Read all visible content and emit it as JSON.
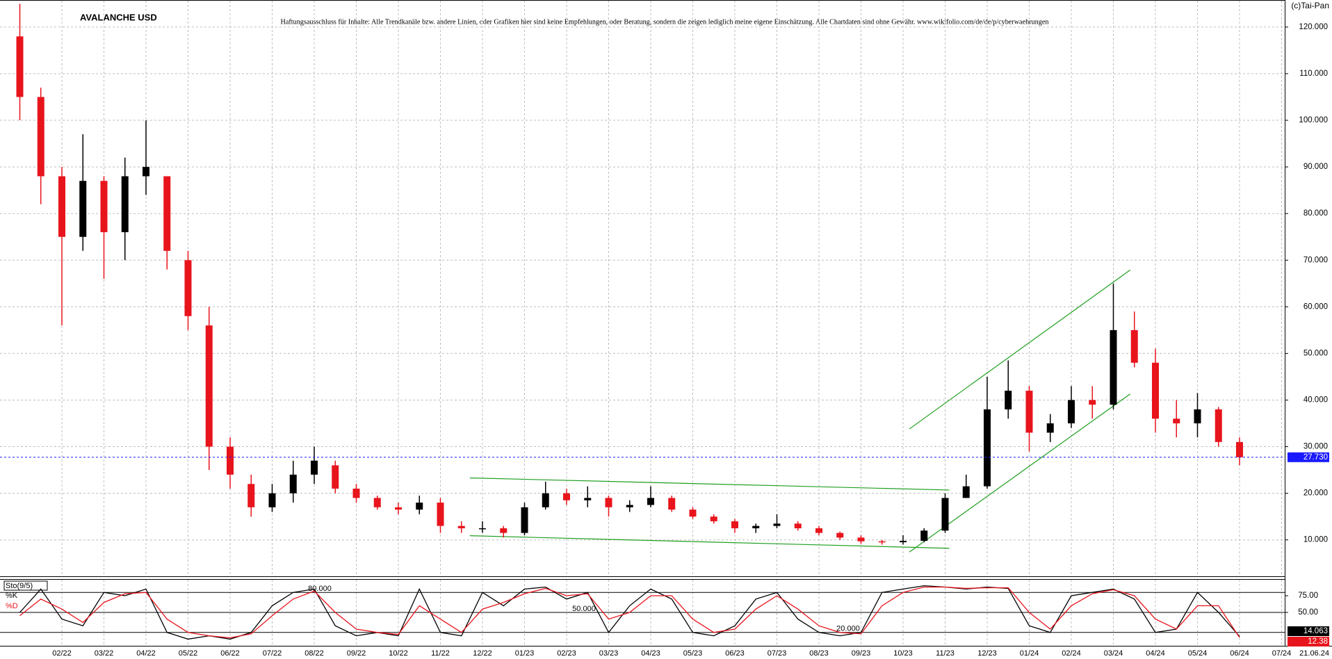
{
  "chart_data": [
    {
      "type": "candlestick",
      "title": "AVALANCHE USD",
      "subtitle": "Haftungsausschluss für Inhalte: Alle Trendkanäle bzw. andere Linien, oder Grafiken hier sind keine Empfehlungen, oder Beratung, sondern die zeigen lediglich meine eigene Einschätzung. Alle Chartdaten sind ohne Gewähr.  www.wikifolio.com/de/de/p/cyberwaehrungen",
      "copyright": "(c)Tai-Pan",
      "date_label": "21.06.24",
      "categories": [
        null,
        null,
        "02/22",
        null,
        "03/22",
        null,
        "04/22",
        null,
        "05/22",
        null,
        "06/22",
        null,
        "07/22",
        null,
        "08/22",
        null,
        "09/22",
        null,
        "10/22",
        null,
        "11/22",
        null,
        "12/22",
        null,
        "01/23",
        null,
        "02/23",
        null,
        "03/23",
        null,
        "04/23",
        null,
        "05/23",
        null,
        "06/23",
        null,
        "07/23",
        null,
        "08/23",
        null,
        "09/23",
        null,
        "10/23",
        null,
        "11/23",
        null,
        "12/23",
        null,
        "01/24",
        null,
        "02/24",
        null,
        "03/24",
        null,
        "04/24",
        null,
        "05/24",
        null,
        "06/24",
        null,
        "07/24"
      ],
      "ohlc": [
        [
          118,
          125,
          100,
          105
        ],
        [
          105,
          107,
          82,
          88
        ],
        [
          88,
          90,
          56,
          75
        ],
        [
          75,
          97,
          72,
          87
        ],
        [
          87,
          88,
          66,
          76
        ],
        [
          76,
          92,
          70,
          88
        ],
        [
          88,
          100,
          84,
          90
        ],
        [
          88,
          82,
          68,
          72
        ],
        [
          70,
          72,
          55,
          58
        ],
        [
          56,
          60,
          25,
          30
        ],
        [
          30,
          32,
          21,
          24
        ],
        [
          22,
          24,
          15,
          17
        ],
        [
          17,
          22,
          16,
          20
        ],
        [
          20,
          27,
          18,
          24
        ],
        [
          24,
          30,
          22,
          27
        ],
        [
          26,
          27,
          20,
          21
        ],
        [
          21,
          22,
          18,
          19
        ],
        [
          19,
          19.5,
          16.5,
          17
        ],
        [
          17,
          18,
          15.5,
          16.5
        ],
        [
          16.5,
          19.5,
          15.5,
          18
        ],
        [
          18,
          19,
          11.5,
          13
        ],
        [
          13,
          14,
          11.5,
          12.5
        ],
        [
          12.5,
          14,
          11.5,
          12.5
        ],
        [
          12.5,
          13,
          10.5,
          11.5
        ],
        [
          11.5,
          18,
          11,
          17
        ],
        [
          17,
          22.5,
          16.5,
          20
        ],
        [
          20,
          21,
          17.5,
          18.5
        ],
        [
          18.5,
          21.5,
          17,
          19
        ],
        [
          19,
          19.5,
          15,
          17
        ],
        [
          17,
          18.5,
          16,
          17.5
        ],
        [
          17.5,
          21.5,
          17,
          19
        ],
        [
          19,
          19.5,
          16,
          16.5
        ],
        [
          16.5,
          17,
          14.5,
          15
        ],
        [
          15,
          15.5,
          13.5,
          14
        ],
        [
          14,
          14.5,
          11.5,
          12.5
        ],
        [
          12.5,
          13.5,
          11.5,
          13
        ],
        [
          13,
          15.5,
          12.5,
          13.5
        ],
        [
          13.5,
          14,
          12,
          12.5
        ],
        [
          12.5,
          13,
          11,
          11.5
        ],
        [
          11.5,
          11.8,
          10,
          10.5
        ],
        [
          10.5,
          11,
          9.2,
          9.7
        ],
        [
          9.7,
          10,
          9,
          9.5
        ],
        [
          9.5,
          11,
          9,
          9.8
        ],
        [
          9.8,
          12.5,
          9.5,
          12
        ],
        [
          12,
          20,
          11.5,
          19
        ],
        [
          19,
          24,
          19,
          21.5
        ],
        [
          21.5,
          45,
          21,
          38
        ],
        [
          38,
          48.5,
          36,
          42
        ],
        [
          42,
          43,
          29,
          33
        ],
        [
          33,
          37,
          31,
          35
        ],
        [
          35,
          43,
          34,
          40
        ],
        [
          40,
          43,
          36,
          39
        ],
        [
          39,
          65,
          38,
          55
        ],
        [
          55,
          59,
          47,
          48
        ],
        [
          48,
          51,
          33,
          36
        ],
        [
          36,
          40,
          32,
          35
        ],
        [
          35,
          41.5,
          32,
          38
        ],
        [
          38,
          38.5,
          30,
          31
        ],
        [
          31,
          32,
          26,
          27.73
        ],
        null,
        null
      ],
      "up_color": "#000000",
      "down_color": "#e8141c",
      "ylim": [
        2.5,
        125.8
      ],
      "yticks": [
        {
          "value": 10,
          "label": "10.000"
        },
        {
          "value": 20,
          "label": "20.000"
        },
        {
          "value": 30,
          "label": "30.000"
        },
        {
          "value": 40,
          "label": "40.000"
        },
        {
          "value": 50,
          "label": "50.000"
        },
        {
          "value": 60,
          "label": "60.000"
        },
        {
          "value": 70,
          "label": "70.000"
        },
        {
          "value": 80,
          "label": "80.000"
        },
        {
          "value": 90,
          "label": "90.000"
        },
        {
          "value": 100,
          "label": "100.000"
        },
        {
          "value": 110,
          "label": "110.000"
        },
        {
          "value": 120,
          "label": "120.000"
        }
      ],
      "grid": true,
      "last_price": {
        "value": 27.73,
        "label": "27.730"
      },
      "last_price_color": "#1a1aff",
      "trend_color": "#1e9e1e",
      "trend_lines": [
        {
          "x": [
            21.4,
            44.2
          ],
          "y": [
            23.3,
            20.7
          ]
        },
        {
          "x": [
            21.4,
            44.2
          ],
          "y": [
            10.9,
            8.2
          ]
        },
        {
          "x": [
            42.3,
            52.8
          ],
          "y": [
            33.8,
            67.9
          ]
        },
        {
          "x": [
            42.3,
            52.8
          ],
          "y": [
            7.4,
            41.3
          ]
        }
      ]
    },
    {
      "type": "line",
      "title": "Sto(9/5)",
      "series": [
        {
          "name": "%K",
          "color": "#000000",
          "values": [
            50,
            85,
            40,
            30,
            80,
            75,
            85,
            20,
            10,
            15,
            10,
            20,
            60,
            80,
            85,
            30,
            15,
            20,
            15,
            85,
            20,
            15,
            80,
            60,
            85,
            88,
            70,
            80,
            20,
            60,
            85,
            70,
            20,
            15,
            30,
            70,
            80,
            40,
            20,
            15,
            20,
            80,
            85,
            90,
            88,
            85,
            88,
            86,
            30,
            20,
            75,
            80,
            85,
            70,
            20,
            25,
            80,
            50,
            14.063,
            null,
            null
          ]
        },
        {
          "name": "%D",
          "color": "#e8141c",
          "values": [
            45,
            70,
            55,
            35,
            65,
            78,
            80,
            40,
            20,
            15,
            12,
            18,
            45,
            70,
            82,
            50,
            25,
            20,
            17,
            60,
            40,
            20,
            55,
            65,
            78,
            86,
            75,
            78,
            40,
            50,
            75,
            75,
            40,
            20,
            25,
            55,
            75,
            55,
            30,
            20,
            18,
            60,
            80,
            88,
            88,
            86,
            87,
            87,
            50,
            25,
            60,
            78,
            84,
            75,
            40,
            25,
            60,
            60,
            12.38,
            null,
            null
          ]
        }
      ],
      "ylim": [
        0,
        100
      ],
      "yticks": [
        {
          "value": 75,
          "label": "75.00"
        },
        {
          "value": 50,
          "label": "50.00"
        }
      ],
      "levels": [
        {
          "value": 80,
          "label": "80.000"
        },
        {
          "value": 50,
          "label": "50.000"
        },
        {
          "value": 20,
          "label": "20.000"
        }
      ]
    }
  ]
}
